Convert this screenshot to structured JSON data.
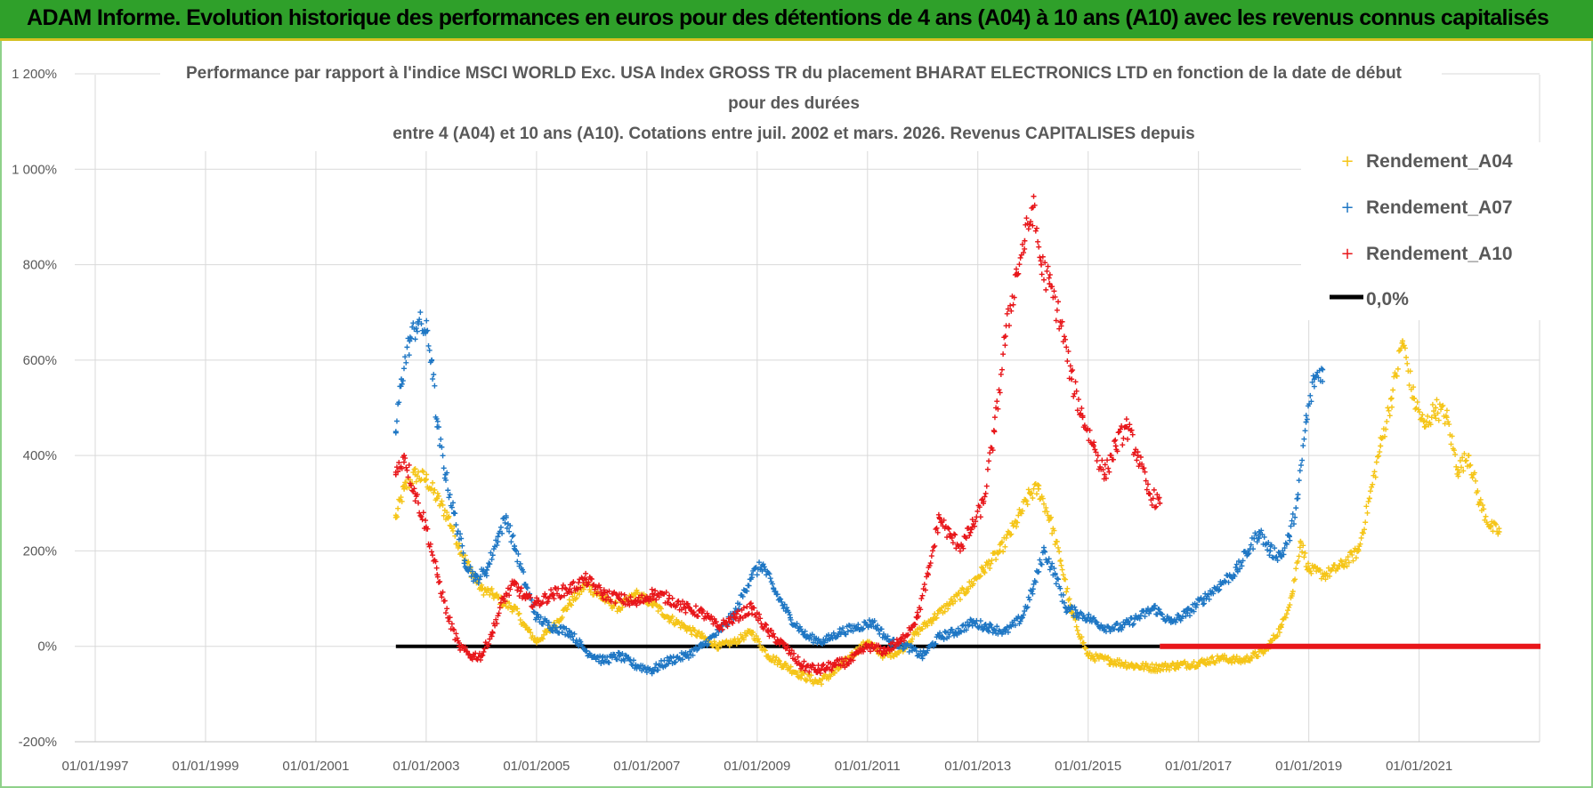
{
  "banner": {
    "title": "ADAM Informe. Evolution historique des performances en euros pour des détentions de 4 ans (A04) à 10 ans (A10) avec les revenus connus capitalisés"
  },
  "chart_data": {
    "type": "scatter",
    "title_lines": [
      "Performance par rapport à l'indice MSCI WORLD Exc. USA Index GROSS TR  du placement BHARAT ELECTRONICS LTD en fonction de la date de début",
      "pour des durées",
      "entre 4 (A04) et 10 ans (A10). Cotations entre juil. 2002 et mars. 2026. Revenus CAPITALISES depuis"
    ],
    "xlabel": "",
    "ylabel": "",
    "x_tick_labels": [
      "01/01/1997",
      "01/01/1999",
      "01/01/2001",
      "01/01/2003",
      "01/01/2005",
      "01/01/2007",
      "01/01/2009",
      "01/01/2011",
      "01/01/2013",
      "01/01/2015",
      "01/01/2017",
      "01/01/2019",
      "01/01/2021"
    ],
    "x_range": [
      1997.0,
      2023.2
    ],
    "y_tick_labels": [
      "-200%",
      "0%",
      "200%",
      "400%",
      "600%",
      "800%",
      "1 000%",
      "1 200%"
    ],
    "y_range": [
      -200,
      1200
    ],
    "grid": true,
    "legend_position": "top-right",
    "series": [
      {
        "name": "Rendement_A04",
        "color": "#f5c518",
        "marker": "+",
        "x": [
          2002.45,
          2002.6,
          2002.8,
          2003.0,
          2003.2,
          2003.4,
          2003.6,
          2003.8,
          2004.0,
          2004.2,
          2004.4,
          2004.6,
          2004.8,
          2005.0,
          2005.3,
          2005.6,
          2005.9,
          2006.2,
          2006.5,
          2006.8,
          2007.1,
          2007.4,
          2007.7,
          2008.0,
          2008.3,
          2008.6,
          2008.9,
          2009.2,
          2009.5,
          2009.8,
          2010.1,
          2010.4,
          2010.7,
          2011.0,
          2011.3,
          2011.6,
          2011.9,
          2012.2,
          2012.5,
          2012.8,
          2013.1,
          2013.4,
          2013.7,
          2013.95,
          2014.1,
          2014.3,
          2014.5,
          2014.7,
          2015.0,
          2015.4,
          2015.8,
          2016.2,
          2016.6,
          2017.0,
          2017.4,
          2017.8,
          2018.2,
          2018.5,
          2018.7,
          2018.85,
          2019.0,
          2019.3,
          2019.6,
          2019.9,
          2020.1,
          2020.3,
          2020.5,
          2020.7,
          2020.9,
          2021.1,
          2021.3,
          2021.5,
          2021.7,
          2021.9,
          2022.1,
          2022.3,
          2022.45
        ],
        "y": [
          270,
          330,
          360,
          350,
          310,
          270,
          210,
          160,
          120,
          110,
          90,
          80,
          40,
          10,
          40,
          90,
          130,
          100,
          80,
          110,
          90,
          60,
          40,
          20,
          0,
          10,
          30,
          -20,
          -40,
          -60,
          -75,
          -55,
          -20,
          10,
          -20,
          -10,
          30,
          60,
          90,
          120,
          160,
          200,
          260,
          320,
          330,
          270,
          180,
          70,
          -20,
          -30,
          -40,
          -45,
          -40,
          -35,
          -25,
          -30,
          -10,
          40,
          110,
          220,
          160,
          150,
          170,
          200,
          310,
          420,
          520,
          640,
          520,
          460,
          500,
          480,
          370,
          400,
          300,
          250,
          240
        ]
      },
      {
        "name": "Rendement_A07",
        "color": "#1f77c4",
        "marker": "+",
        "x": [
          2002.45,
          2002.55,
          2002.7,
          2002.85,
          2003.0,
          2003.1,
          2003.2,
          2003.35,
          2003.5,
          2003.7,
          2003.9,
          2004.1,
          2004.3,
          2004.45,
          2004.6,
          2004.8,
          2005.0,
          2005.3,
          2005.6,
          2005.9,
          2006.2,
          2006.5,
          2006.8,
          2007.1,
          2007.4,
          2007.7,
          2008.0,
          2008.3,
          2008.6,
          2008.9,
          2009.1,
          2009.3,
          2009.6,
          2009.9,
          2010.2,
          2010.5,
          2010.8,
          2011.1,
          2011.4,
          2011.7,
          2012.0,
          2012.3,
          2012.6,
          2012.9,
          2013.2,
          2013.5,
          2013.8,
          2014.0,
          2014.2,
          2014.4,
          2014.6,
          2014.8,
          2015.0,
          2015.3,
          2015.6,
          2015.9,
          2016.2,
          2016.5,
          2016.8,
          2017.1,
          2017.4,
          2017.7,
          2017.9,
          2018.1,
          2018.3,
          2018.5,
          2018.65,
          2018.8,
          2018.95,
          2019.1,
          2019.25
        ],
        "y": [
          450,
          560,
          640,
          680,
          660,
          600,
          460,
          360,
          280,
          180,
          140,
          160,
          230,
          270,
          210,
          130,
          60,
          40,
          30,
          -10,
          -30,
          -20,
          -40,
          -50,
          -30,
          -20,
          0,
          30,
          70,
          150,
          170,
          120,
          60,
          20,
          10,
          30,
          40,
          50,
          10,
          0,
          -20,
          20,
          30,
          50,
          40,
          30,
          60,
          120,
          200,
          150,
          80,
          70,
          60,
          40,
          40,
          60,
          80,
          50,
          70,
          100,
          130,
          160,
          200,
          240,
          200,
          190,
          230,
          310,
          470,
          560,
          580
        ]
      },
      {
        "name": "Rendement_A10",
        "color": "#e8161a",
        "marker": "+",
        "x": [
          2002.45,
          2002.6,
          2002.8,
          2003.0,
          2003.2,
          2003.4,
          2003.6,
          2003.8,
          2004.0,
          2004.2,
          2004.4,
          2004.6,
          2004.8,
          2005.0,
          2005.3,
          2005.6,
          2005.9,
          2006.2,
          2006.5,
          2006.8,
          2007.1,
          2007.4,
          2007.7,
          2008.0,
          2008.3,
          2008.6,
          2008.9,
          2009.2,
          2009.5,
          2009.8,
          2010.1,
          2010.4,
          2010.7,
          2011.0,
          2011.3,
          2011.6,
          2011.9,
          2012.1,
          2012.3,
          2012.5,
          2012.7,
          2012.9,
          2013.1,
          2013.3,
          2013.5,
          2013.7,
          2013.85,
          2014.0,
          2014.15,
          2014.3,
          2014.5,
          2014.7,
          2014.9,
          2015.1,
          2015.3,
          2015.5,
          2015.7,
          2015.9,
          2016.1,
          2016.3
        ],
        "y": [
          360,
          400,
          320,
          250,
          150,
          60,
          0,
          -20,
          -20,
          30,
          100,
          130,
          100,
          90,
          110,
          120,
          140,
          110,
          100,
          90,
          110,
          100,
          80,
          70,
          40,
          60,
          80,
          30,
          0,
          -40,
          -50,
          -40,
          -30,
          0,
          -10,
          10,
          60,
          150,
          270,
          230,
          210,
          250,
          300,
          450,
          650,
          780,
          850,
          920,
          800,
          760,
          680,
          560,
          480,
          420,
          360,
          420,
          460,
          400,
          320,
          300
        ]
      },
      {
        "name": "0,0%",
        "color": "#000000",
        "marker": "line",
        "x": [
          2002.45,
          2016.3
        ],
        "y": [
          0,
          0
        ]
      }
    ],
    "zero_overlay": {
      "color": "#e8161a",
      "x": [
        2016.3,
        2023.2
      ],
      "y": [
        0,
        0
      ]
    }
  }
}
